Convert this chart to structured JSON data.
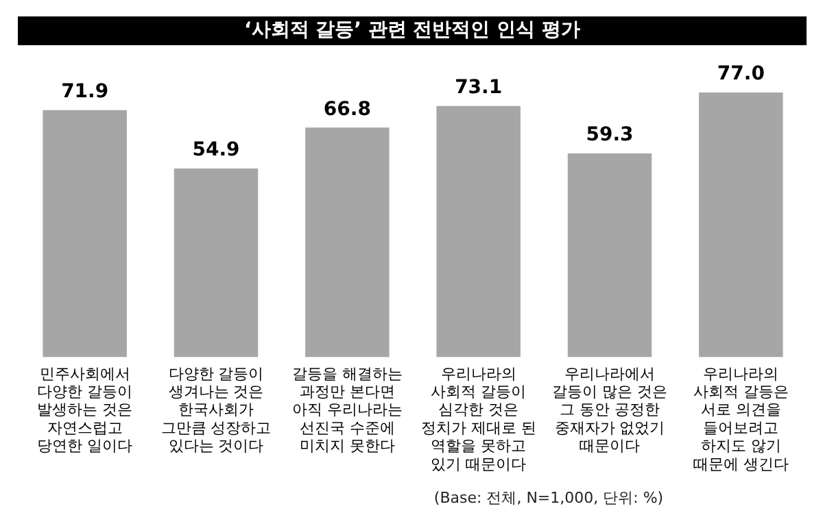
{
  "chart_data": {
    "type": "bar",
    "title": "‘사회적 갈등’ 관련 전반적인 인식 평가",
    "categories": [
      "민주사회에서\n다양한 갈등이\n발생하는 것은\n자연스럽고\n당연한 일이다",
      "다양한 갈등이\n생겨나는 것은\n한국사회가\n그만큼 성장하고\n있다는 것이다",
      "갈등을 해결하는\n과정만 본다면\n아직 우리나라는\n선진국 수준에\n미치지 못한다",
      "우리나라의\n사회적 갈등이\n심각한 것은\n정치가 제대로 된\n역할을 못하고\n있기 때문이다",
      "우리나라에서\n갈등이 많은 것은\n그 동안 공정한\n중재자가 없었기\n때문이다",
      "우리나라의\n사회적 갈등은\n서로 의견을\n들어보려고\n하지도 않기\n때문에 생긴다"
    ],
    "values": [
      71.9,
      54.9,
      66.8,
      73.1,
      59.3,
      77.0
    ],
    "value_labels": [
      "71.9",
      "54.9",
      "66.8",
      "73.1",
      "59.3",
      "77.0"
    ],
    "color": "#a6a6a6",
    "annotations": [
      "(Base: 전체, N=1,000, 단위: %)"
    ],
    "grid": false,
    "legend": false,
    "tick_labels": "x"
  }
}
